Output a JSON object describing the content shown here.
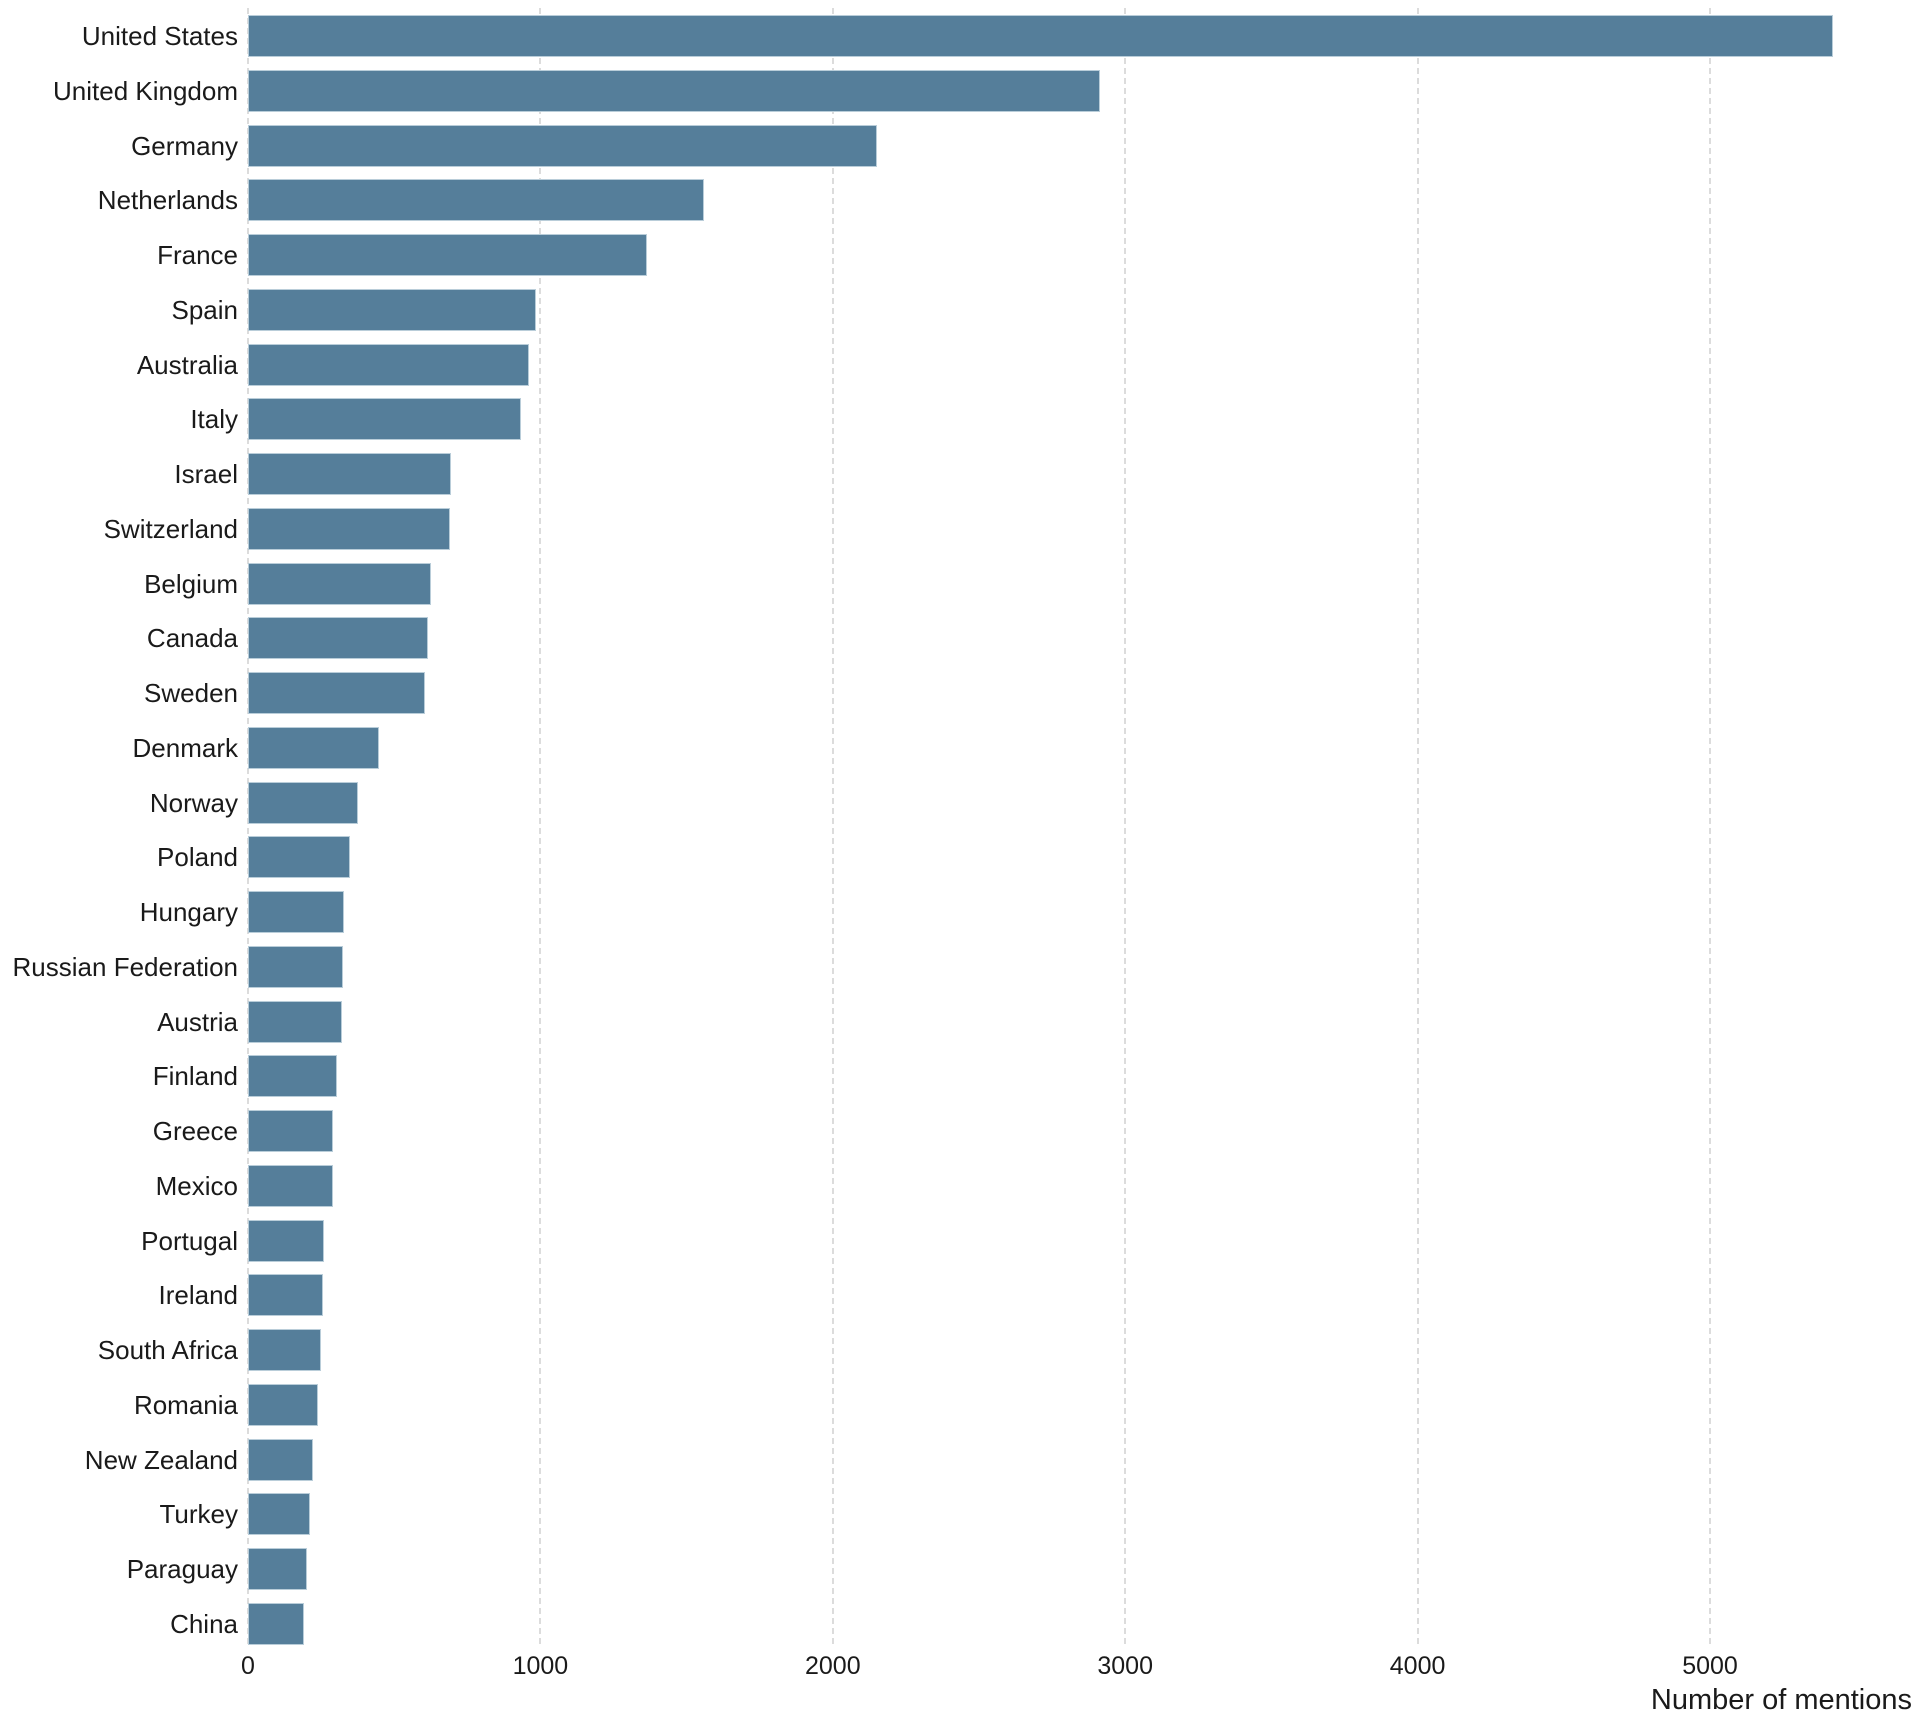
{
  "chart_data": {
    "type": "bar",
    "orientation": "horizontal",
    "title": "",
    "xlabel": "Number of mentions",
    "ylabel": "",
    "categories": [
      "United States",
      "United Kingdom",
      "Germany",
      "Netherlands",
      "France",
      "Spain",
      "Australia",
      "Italy",
      "Israel",
      "Switzerland",
      "Belgium",
      "Canada",
      "Sweden",
      "Denmark",
      "Norway",
      "Poland",
      "Hungary",
      "Russian Federation",
      "Austria",
      "Finland",
      "Greece",
      "Mexico",
      "Portugal",
      "Ireland",
      "South Africa",
      "Romania",
      "New Zealand",
      "Turkey",
      "Paraguay",
      "China"
    ],
    "values": [
      5420,
      2915,
      2150,
      1560,
      1365,
      985,
      960,
      935,
      695,
      690,
      625,
      615,
      605,
      448,
      375,
      350,
      327,
      325,
      320,
      305,
      292,
      290,
      260,
      256,
      250,
      240,
      224,
      213,
      202,
      190
    ],
    "xticks": [
      0,
      1000,
      2000,
      3000,
      4000,
      5000
    ],
    "xlim": [
      0,
      5730
    ],
    "grid": "vertical-dashed",
    "legend": "none",
    "bar_color": "#557e9a",
    "bar_border_color": "#b9cdd9",
    "gridline_color": "#dcdcdc",
    "text_color": "#1a1a1a",
    "background_color": "#ffffff"
  }
}
